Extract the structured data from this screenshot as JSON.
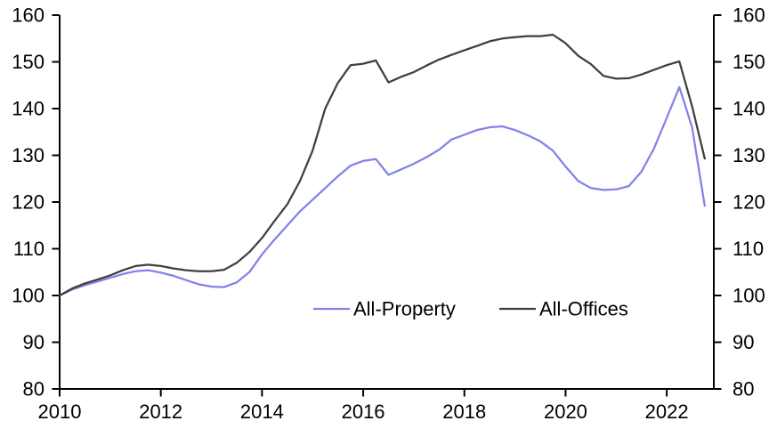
{
  "chart_data": {
    "type": "line",
    "title": "",
    "xlabel": "",
    "ylabel": "",
    "grid": false,
    "dual_y_axis": true,
    "legend_position": "inside-bottom-center",
    "x_range": [
      2010,
      2022.93
    ],
    "y_range": [
      80,
      160
    ],
    "x_ticks": [
      2010,
      2012,
      2014,
      2016,
      2018,
      2020,
      2022
    ],
    "y_ticks": [
      80,
      90,
      100,
      110,
      120,
      130,
      140,
      150,
      160
    ],
    "axis_color": "#000000",
    "x": [
      2010.0,
      2010.25,
      2010.5,
      2010.75,
      2011.0,
      2011.25,
      2011.5,
      2011.75,
      2012.0,
      2012.25,
      2012.5,
      2012.75,
      2013.0,
      2013.25,
      2013.5,
      2013.75,
      2014.0,
      2014.25,
      2014.5,
      2014.75,
      2015.0,
      2015.25,
      2015.5,
      2015.75,
      2016.0,
      2016.25,
      2016.5,
      2016.75,
      2017.0,
      2017.25,
      2017.5,
      2017.75,
      2018.0,
      2018.25,
      2018.5,
      2018.75,
      2019.0,
      2019.25,
      2019.5,
      2019.75,
      2020.0,
      2020.25,
      2020.5,
      2020.75,
      2021.0,
      2021.25,
      2021.5,
      2021.75,
      2022.0,
      2022.25,
      2022.5,
      2022.75
    ],
    "series": [
      {
        "name": "All-Property",
        "color": "#8282e8",
        "values": [
          100.0,
          101.3,
          102.2,
          103.0,
          103.8,
          104.6,
          105.2,
          105.4,
          104.9,
          104.2,
          103.3,
          102.4,
          101.9,
          101.8,
          102.8,
          105.0,
          108.8,
          112.0,
          115.0,
          118.0,
          120.5,
          123.0,
          125.5,
          127.8,
          128.8,
          129.2,
          125.8,
          127.0,
          128.2,
          129.6,
          131.2,
          133.4,
          134.4,
          135.4,
          136.0,
          136.2,
          135.4,
          134.3,
          133.0,
          131.0,
          127.6,
          124.5,
          123.0,
          122.6,
          122.7,
          123.4,
          126.5,
          131.5,
          138.0,
          144.6,
          136.0,
          119.2
        ]
      },
      {
        "name": "All-Offices",
        "color": "#3f3f3f",
        "values": [
          100.0,
          101.5,
          102.6,
          103.4,
          104.3,
          105.4,
          106.3,
          106.6,
          106.3,
          105.8,
          105.4,
          105.2,
          105.2,
          105.5,
          107.0,
          109.3,
          112.3,
          116.0,
          119.5,
          124.5,
          131.0,
          140.0,
          145.5,
          149.3,
          149.6,
          150.3,
          145.6,
          146.8,
          147.8,
          149.2,
          150.5,
          151.5,
          152.5,
          153.4,
          154.4,
          155.0,
          155.3,
          155.5,
          155.5,
          155.8,
          154.0,
          151.3,
          149.5,
          147.0,
          146.4,
          146.5,
          147.3,
          148.3,
          149.3,
          150.1,
          140.5,
          129.3
        ]
      }
    ]
  }
}
